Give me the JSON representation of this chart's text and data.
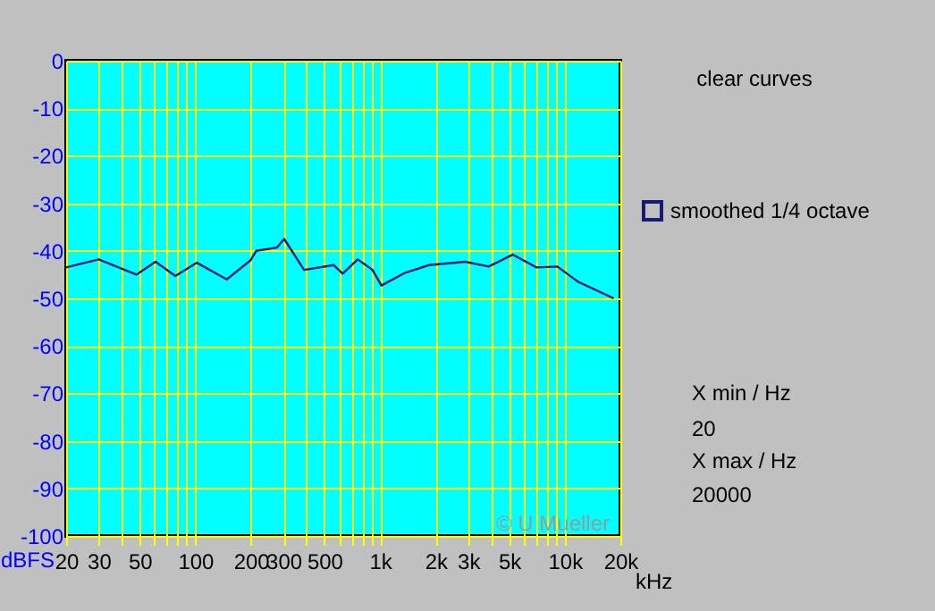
{
  "chart_data": {
    "type": "line",
    "ylabel": "dBFS",
    "x": [
      20,
      30,
      48,
      61,
      78,
      102,
      148,
      199,
      214,
      277,
      303,
      388,
      562,
      628,
      757,
      910,
      1018,
      1370,
      1846,
      2885,
      3875,
      5227,
      7030,
      9120,
      11800,
      18400
    ],
    "series": [
      {
        "name": "smoothed 1/4 octave",
        "color": "#1a1a6e",
        "values": [
          -43.5,
          -41.8,
          -45,
          -42.3,
          -45.3,
          -42.5,
          -46,
          -42,
          -40,
          -39.3,
          -37.5,
          -44,
          -43,
          -44.8,
          -41.8,
          -44,
          -47.3,
          -44.6,
          -43,
          -42.3,
          -43.3,
          -40.8,
          -43.5,
          -43.3,
          -46.5,
          -50
        ]
      }
    ],
    "log": "x",
    "xlim": [
      20,
      20000
    ],
    "ylim": [
      -100,
      0
    ],
    "xticks": [
      20,
      30,
      {
        "value": 40,
        "label": null
      },
      50,
      {
        "value": 60,
        "label": null
      },
      {
        "value": 70,
        "label": null
      },
      {
        "value": 80,
        "label": null
      },
      {
        "value": 90,
        "label": null
      },
      100,
      200,
      300,
      {
        "value": 400,
        "label": null
      },
      500,
      {
        "value": 600,
        "label": null
      },
      {
        "value": 700,
        "label": null
      },
      {
        "value": 800,
        "label": null
      },
      {
        "value": 900,
        "label": null
      },
      {
        "value": 1000,
        "label": "1k"
      },
      {
        "value": 2000,
        "label": "2k"
      },
      {
        "value": 3000,
        "label": "3k"
      },
      {
        "value": 4000,
        "label": null
      },
      {
        "value": 5000,
        "label": "5k"
      },
      {
        "value": 6000,
        "label": null
      },
      {
        "value": 7000,
        "label": null
      },
      {
        "value": 8000,
        "label": null
      },
      {
        "value": 9000,
        "label": null
      },
      {
        "value": 10000,
        "label": "10k"
      },
      {
        "value": 20000,
        "label": "20k"
      }
    ],
    "xlabel": "kHz",
    "line_style": "solid",
    "yticks": [
      -100,
      -90,
      -80,
      -70,
      -60,
      -50,
      -40,
      -30,
      -20,
      -10,
      0
    ],
    "grid": true,
    "legend": "right",
    "annotations": [
      "clear curves",
      "X min / Hz",
      "20",
      "X max / Hz",
      "20000",
      "© U Mueller"
    ]
  }
}
